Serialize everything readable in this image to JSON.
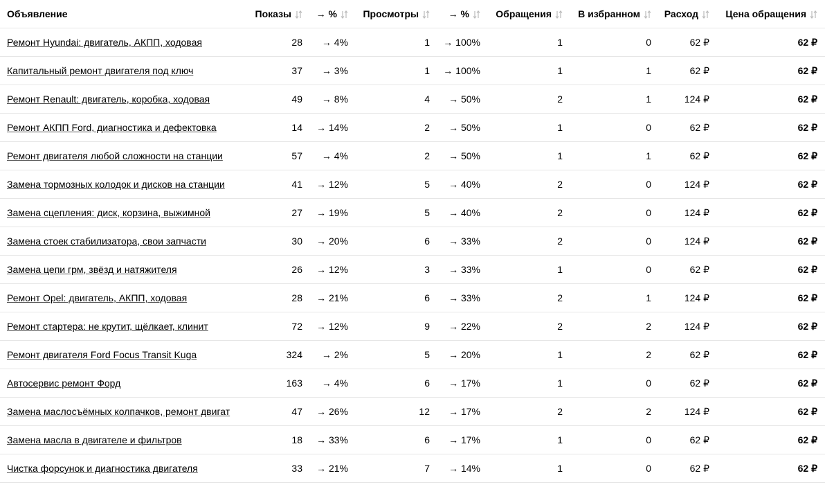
{
  "table": {
    "headers": [
      "Объявление",
      "Показы",
      "→ %",
      "Просмотры",
      "→ %",
      "Обращения",
      "В избранном",
      "Расход",
      "Цена обращения"
    ],
    "rows": [
      [
        "Ремонт Hyundai: двигатель, АКПП, ходовая",
        "28",
        "→ 4%",
        "1",
        "→ 100%",
        "1",
        "0",
        "62 ₽",
        "62 ₽"
      ],
      [
        "Капитальный ремонт двигателя под ключ",
        "37",
        "→ 3%",
        "1",
        "→ 100%",
        "1",
        "1",
        "62 ₽",
        "62 ₽"
      ],
      [
        "Ремонт Renault: двигатель, коробка, ходовая",
        "49",
        "→ 8%",
        "4",
        "→ 50%",
        "2",
        "1",
        "124 ₽",
        "62 ₽"
      ],
      [
        "Ремонт АКПП Ford, диагностика и дефектовка",
        "14",
        "→ 14%",
        "2",
        "→ 50%",
        "1",
        "0",
        "62 ₽",
        "62 ₽"
      ],
      [
        "Ремонт двигателя любой сложности на станции",
        "57",
        "→ 4%",
        "2",
        "→ 50%",
        "1",
        "1",
        "62 ₽",
        "62 ₽"
      ],
      [
        "Замена тормозных колодок и дисков на станции",
        "41",
        "→ 12%",
        "5",
        "→ 40%",
        "2",
        "0",
        "124 ₽",
        "62 ₽"
      ],
      [
        "Замена сцепления: диск, корзина, выжимной",
        "27",
        "→ 19%",
        "5",
        "→ 40%",
        "2",
        "0",
        "124 ₽",
        "62 ₽"
      ],
      [
        "Замена стоек стабилизатора, свои запчасти",
        "30",
        "→ 20%",
        "6",
        "→ 33%",
        "2",
        "0",
        "124 ₽",
        "62 ₽"
      ],
      [
        "Замена цепи грм, звёзд и натяжителя",
        "26",
        "→ 12%",
        "3",
        "→ 33%",
        "1",
        "0",
        "62 ₽",
        "62 ₽"
      ],
      [
        "Ремонт Opel: двигатель, АКПП, ходовая",
        "28",
        "→ 21%",
        "6",
        "→ 33%",
        "2",
        "1",
        "124 ₽",
        "62 ₽"
      ],
      [
        "Ремонт стартера: не крутит, щёлкает, клинит",
        "72",
        "→ 12%",
        "9",
        "→ 22%",
        "2",
        "2",
        "124 ₽",
        "62 ₽"
      ],
      [
        "Ремонт двигателя Ford Focus Transit Kuga",
        "324",
        "→ 2%",
        "5",
        "→ 20%",
        "1",
        "2",
        "62 ₽",
        "62 ₽"
      ],
      [
        "Автосервис ремонт Форд",
        "163",
        "→ 4%",
        "6",
        "→ 17%",
        "1",
        "0",
        "62 ₽",
        "62 ₽"
      ],
      [
        "Замена маслосъёмных колпачков, ремонт двигат",
        "47",
        "→ 26%",
        "12",
        "→ 17%",
        "2",
        "2",
        "124 ₽",
        "62 ₽"
      ],
      [
        "Замена масла в двигателе и фильтров",
        "18",
        "→ 33%",
        "6",
        "→ 17%",
        "1",
        "0",
        "62 ₽",
        "62 ₽"
      ],
      [
        "Чистка форсунок и диагностика двигателя",
        "33",
        "→ 21%",
        "7",
        "→ 14%",
        "1",
        "0",
        "62 ₽",
        "62 ₽"
      ]
    ]
  }
}
